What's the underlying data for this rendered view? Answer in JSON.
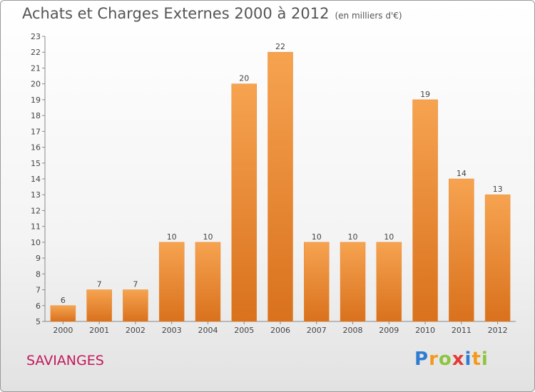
{
  "chart_data": {
    "type": "bar",
    "title": "Achats et Charges Externes 2000 à 2012",
    "subtitle": "(en milliers d'€)",
    "categories": [
      "2000",
      "2001",
      "2002",
      "2003",
      "2004",
      "2005",
      "2006",
      "2007",
      "2008",
      "2009",
      "2010",
      "2011",
      "2012"
    ],
    "values": [
      6,
      7,
      7,
      10,
      10,
      20,
      22,
      10,
      10,
      10,
      19,
      14,
      13
    ],
    "ylim": [
      5,
      23
    ],
    "yticks": [
      5,
      6,
      7,
      8,
      9,
      10,
      11,
      12,
      13,
      14,
      15,
      16,
      17,
      18,
      19,
      20,
      21,
      22,
      23
    ],
    "grid": false,
    "bar_color": "#f0943a"
  },
  "footer": {
    "town": "SAVIANGES",
    "logo": "Proxiti"
  }
}
